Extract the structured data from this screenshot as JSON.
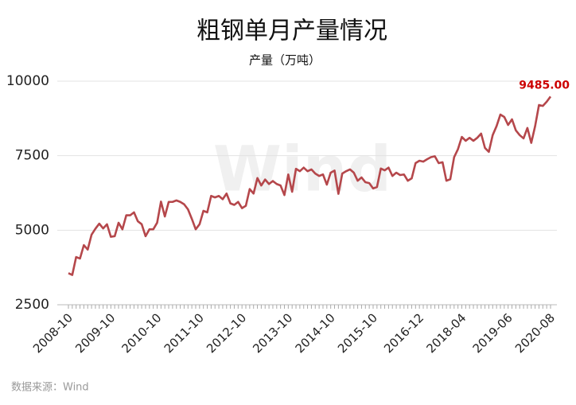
{
  "chart_data": {
    "type": "line",
    "title": "粗钢单月产量情况",
    "subtitle": "产量（万吨）",
    "source": "数据来源：Wind",
    "watermark": "Wind",
    "color": "#b5474b",
    "label_color": "#cc0000",
    "grid": true,
    "ylim": [
      2500,
      10000
    ],
    "yticks": [
      2500,
      5000,
      7500,
      10000
    ],
    "categories": [
      "2008-10",
      null,
      null,
      null,
      null,
      null,
      null,
      null,
      null,
      null,
      null,
      "2009-10",
      null,
      null,
      null,
      null,
      null,
      null,
      null,
      null,
      null,
      null,
      null,
      "2010-10",
      null,
      null,
      null,
      null,
      null,
      null,
      null,
      null,
      null,
      null,
      "2011-10",
      null,
      null,
      null,
      null,
      null,
      null,
      null,
      null,
      null,
      null,
      "2012-10",
      null,
      null,
      null,
      null,
      null,
      null,
      null,
      null,
      null,
      null,
      null,
      "2013-10",
      null,
      null,
      null,
      null,
      null,
      null,
      null,
      null,
      null,
      null,
      "2014-10",
      null,
      null,
      null,
      null,
      null,
      null,
      null,
      null,
      null,
      null,
      "2015-10",
      null,
      null,
      null,
      null,
      null,
      null,
      null,
      null,
      null,
      null,
      null,
      "2016-12",
      null,
      null,
      null,
      null,
      null,
      null,
      null,
      null,
      null,
      null,
      "2018-04",
      null,
      null,
      null,
      null,
      null,
      null,
      null,
      null,
      null,
      null,
      null,
      "2019-06",
      null,
      null,
      null,
      null,
      null,
      null,
      null,
      null,
      null,
      null,
      "2020-08"
    ],
    "values": [
      3560,
      3500,
      4100,
      4050,
      4500,
      4350,
      4850,
      5050,
      5220,
      5060,
      5200,
      4780,
      4800,
      5250,
      5030,
      5500,
      5500,
      5600,
      5300,
      5200,
      4800,
      5030,
      5030,
      5250,
      5960,
      5460,
      5950,
      5950,
      6000,
      5950,
      5870,
      5700,
      5380,
      5030,
      5200,
      5650,
      5600,
      6150,
      6100,
      6150,
      6040,
      6230,
      5900,
      5850,
      5950,
      5740,
      5820,
      6380,
      6230,
      6750,
      6500,
      6700,
      6550,
      6650,
      6550,
      6500,
      6180,
      6870,
      6290,
      7060,
      6980,
      7100,
      6980,
      7040,
      6900,
      6820,
      6870,
      6530,
      6930,
      7000,
      6220,
      6900,
      6980,
      7040,
      6930,
      6660,
      6770,
      6610,
      6580,
      6400,
      6450,
      7070,
      7010,
      7100,
      6820,
      6930,
      6850,
      6870,
      6660,
      6740,
      7250,
      7330,
      7300,
      7380,
      7450,
      7480,
      7250,
      7280,
      6660,
      6710,
      7450,
      7720,
      8130,
      8000,
      8100,
      8000,
      8100,
      8240,
      7760,
      7630,
      8190,
      8490,
      8880,
      8800,
      8530,
      8720,
      8350,
      8190,
      8080,
      8430,
      7930,
      8490,
      9200,
      9170,
      9310,
      9485
    ],
    "value_labels": [
      null,
      null,
      null,
      null,
      null,
      null,
      null,
      null,
      null,
      null,
      null,
      null,
      null,
      null,
      null,
      null,
      null,
      null,
      null,
      null,
      null,
      null,
      null,
      null,
      null,
      null,
      null,
      null,
      null,
      null,
      null,
      null,
      null,
      null,
      null,
      null,
      null,
      null,
      null,
      null,
      null,
      null,
      null,
      null,
      null,
      null,
      null,
      null,
      null,
      null,
      null,
      null,
      null,
      null,
      null,
      null,
      null,
      null,
      null,
      null,
      null,
      null,
      null,
      null,
      null,
      null,
      null,
      null,
      null,
      null,
      null,
      null,
      null,
      null,
      null,
      null,
      null,
      null,
      null,
      null,
      null,
      null,
      null,
      null,
      null,
      null,
      null,
      null,
      null,
      null,
      null,
      null,
      null,
      null,
      null,
      null,
      null,
      null,
      null,
      null,
      null,
      null,
      null,
      null,
      null,
      null,
      null,
      null,
      null,
      null,
      null,
      null,
      null,
      null,
      null,
      null,
      null,
      null,
      null,
      null,
      null,
      null,
      null,
      null,
      null,
      "9485.00"
    ]
  }
}
